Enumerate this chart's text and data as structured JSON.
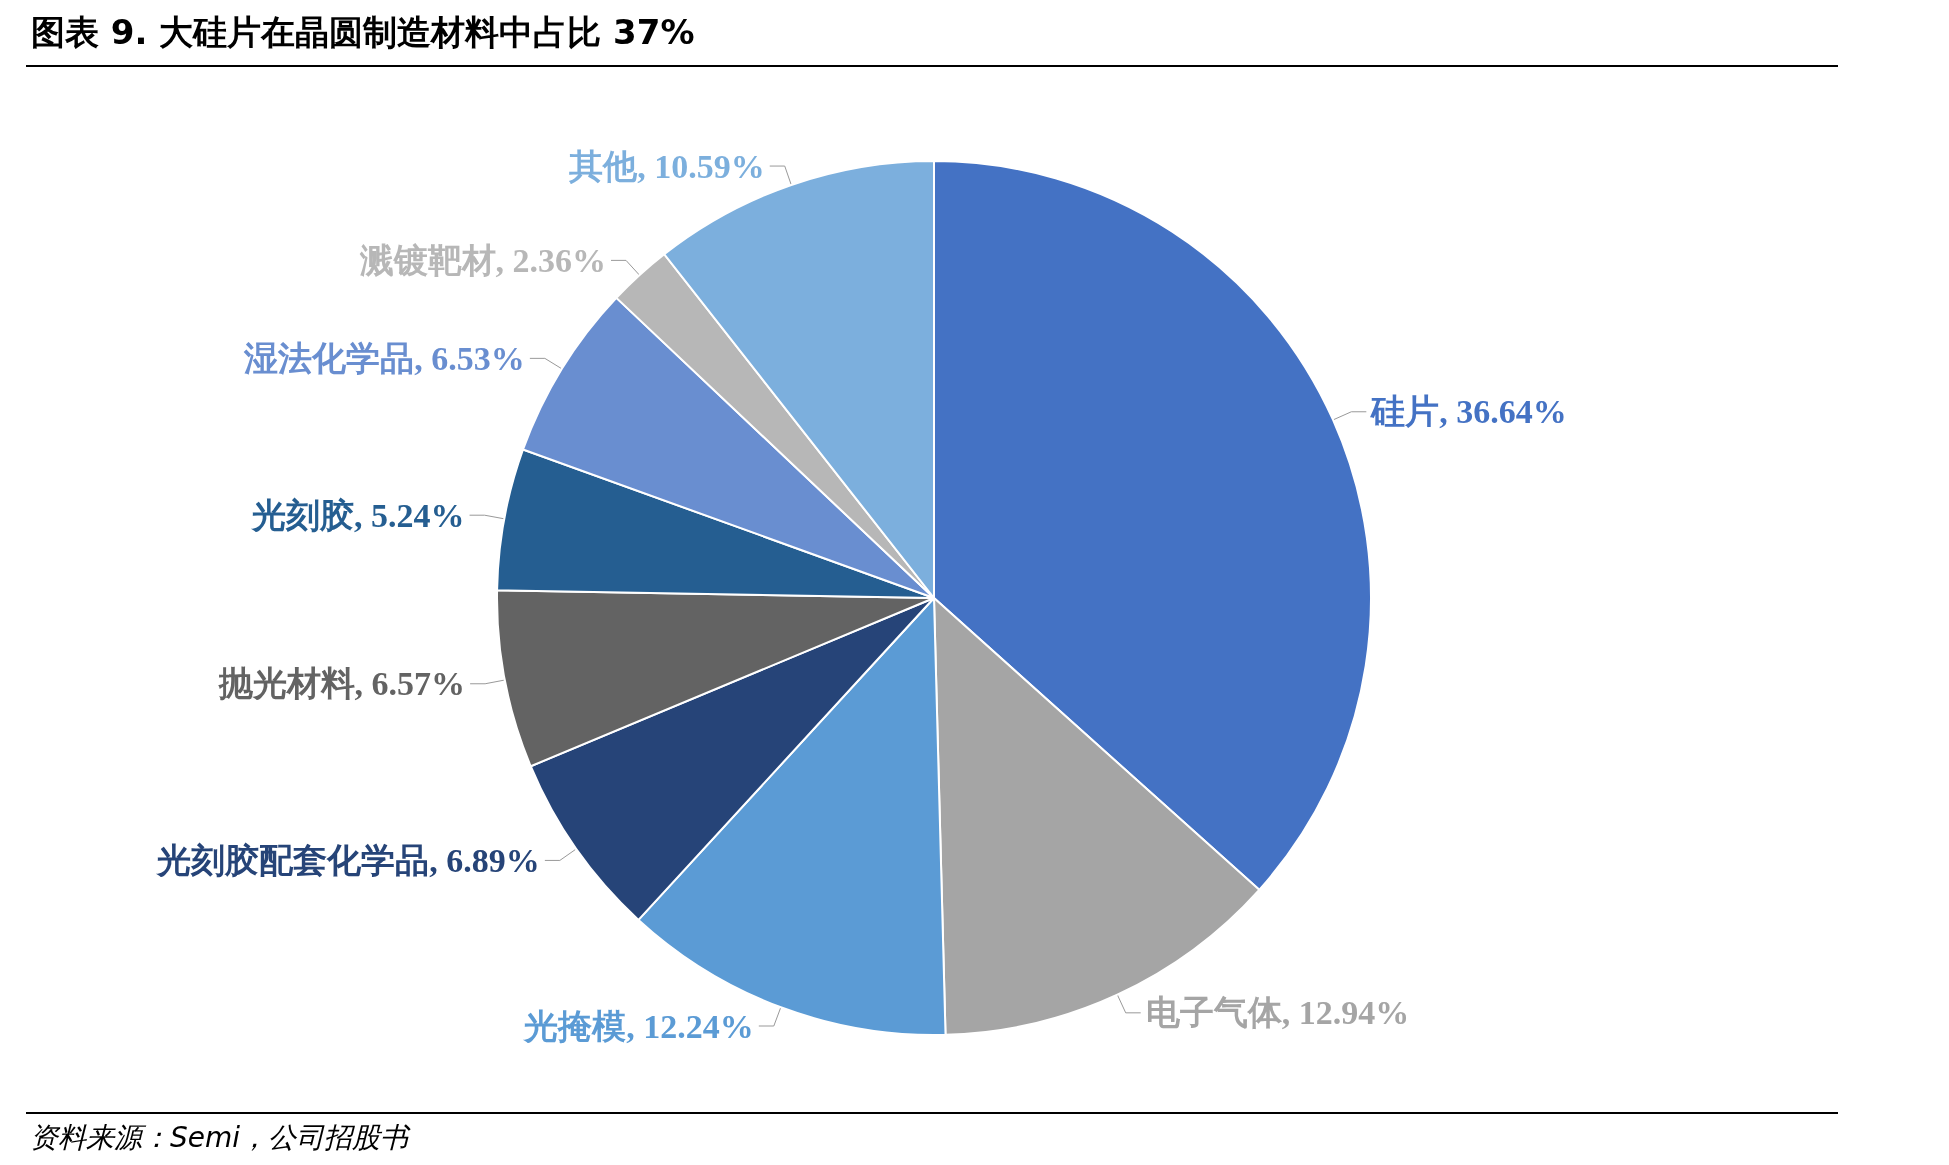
{
  "chart_data": {
    "type": "pie",
    "title": "图表 9. 大硅片在晶圆制造材料中占比 37%",
    "categories": [
      "硅片",
      "电子气体",
      "光掩模",
      "光刻胶配套化学品",
      "抛光材料",
      "光刻胶",
      "湿法化学品",
      "溅镀靶材",
      "其他"
    ],
    "values": [
      36.64,
      12.94,
      12.24,
      6.89,
      6.57,
      5.24,
      6.53,
      2.36,
      10.59
    ],
    "colors": [
      "#4472c4",
      "#a5a5a5",
      "#5b9bd5",
      "#264478",
      "#636363",
      "#255e91",
      "#698ed0",
      "#b7b7b7",
      "#7cafdd"
    ],
    "value_labels": [
      "36.64%",
      "12.94%",
      "12.24%",
      "6.89%",
      "6.57%",
      "5.24%",
      "6.53%",
      "2.36%",
      "10.59%"
    ],
    "legend": false,
    "annotations": [
      "资料来源：Semi，公司招股书"
    ]
  }
}
